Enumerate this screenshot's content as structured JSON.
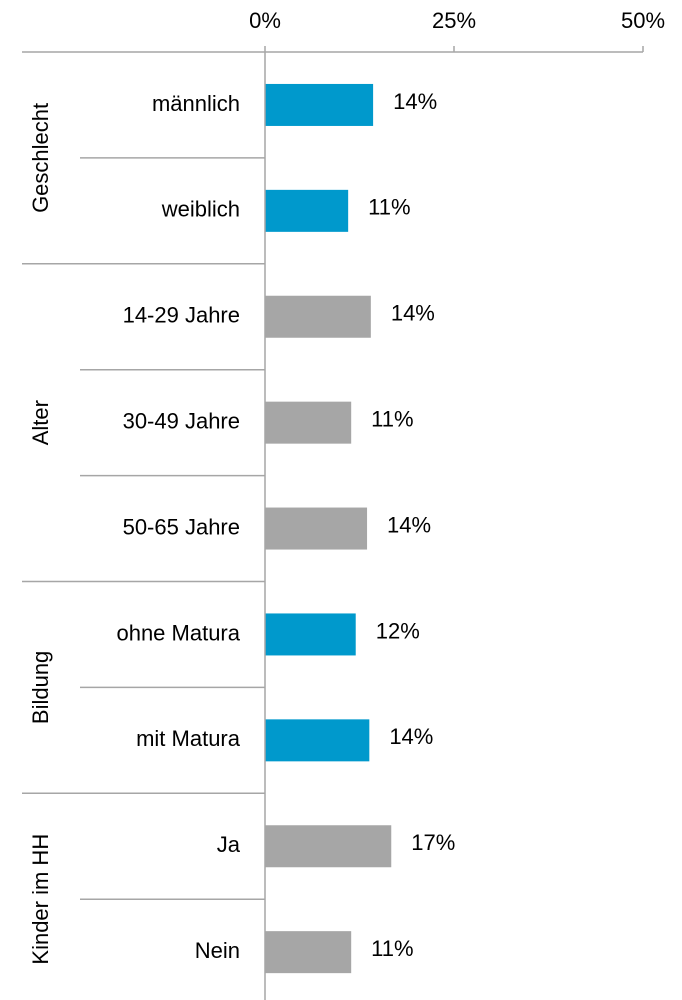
{
  "chart_data": {
    "type": "bar",
    "xlim": [
      0,
      50
    ],
    "xticks": [
      {
        "value": 0,
        "label": "0%"
      },
      {
        "value": 25,
        "label": "25%"
      },
      {
        "value": 50,
        "label": "50%"
      }
    ],
    "groups": [
      {
        "name": "Geschlecht",
        "color": "#0099cc",
        "categories": [
          "männlich",
          "weiblich"
        ],
        "values": [
          14.3,
          11.0
        ],
        "value_labels": [
          "14%",
          "11%"
        ]
      },
      {
        "name": "Alter",
        "color": "#a6a6a6",
        "categories": [
          "14-29 Jahre",
          "30-49 Jahre",
          "50-65 Jahre"
        ],
        "values": [
          14.0,
          11.4,
          13.5
        ],
        "value_labels": [
          "14%",
          "11%",
          "14%"
        ]
      },
      {
        "name": "Bildung",
        "color": "#0099cc",
        "categories": [
          "ohne Matura",
          "mit Matura"
        ],
        "values": [
          12.0,
          13.8
        ],
        "value_labels": [
          "12%",
          "14%"
        ]
      },
      {
        "name": "Kinder im HH",
        "color": "#a6a6a6",
        "categories": [
          "Ja",
          "Nein"
        ],
        "values": [
          16.7,
          11.4
        ],
        "value_labels": [
          "17%",
          "11%"
        ]
      }
    ]
  }
}
